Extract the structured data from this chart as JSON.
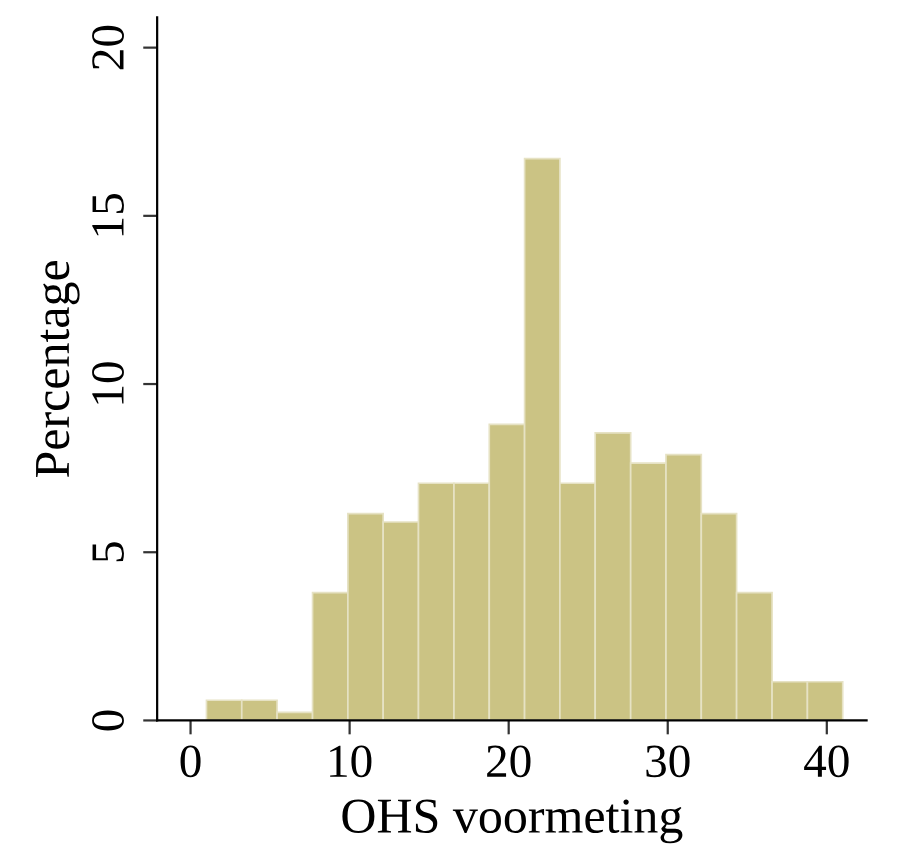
{
  "chart_data": {
    "type": "histogram",
    "xlabel": "OHS voormeting",
    "ylabel": "Percentage",
    "bins": [
      1,
      3.22,
      5.44,
      7.67,
      9.89,
      12.11,
      14.33,
      16.56,
      18.78,
      21,
      23.22,
      25.44,
      27.67,
      29.89,
      32.11,
      34.33,
      36.56,
      38.78,
      41
    ],
    "values": [
      0.6,
      0.6,
      0.24,
      3.8,
      6.15,
      5.9,
      7.05,
      7.05,
      8.8,
      16.7,
      7.05,
      8.55,
      7.65,
      7.9,
      6.15,
      3.8,
      1.15,
      1.15
    ],
    "color": "#cbc384",
    "xlim": [
      -2.1,
      42.5
    ],
    "ylim": [
      0,
      20.9
    ],
    "xticks": [
      0,
      10,
      20,
      30,
      40
    ],
    "yticks": [
      0,
      5,
      10,
      15,
      20
    ],
    "grid": false
  }
}
